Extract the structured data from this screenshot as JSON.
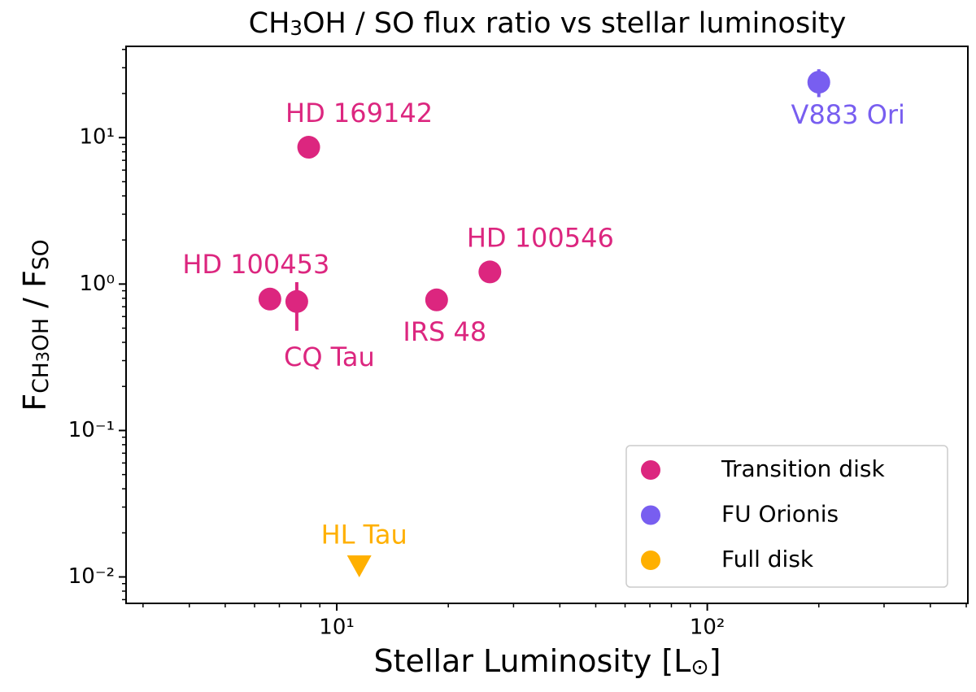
{
  "chart_data": {
    "type": "scatter",
    "title_parts": [
      {
        "text": "CH"
      },
      {
        "text": "3",
        "sub": true
      },
      {
        "text": "OH / SO flux ratio vs stellar luminosity"
      }
    ],
    "xlabel_parts": [
      {
        "text": "Stellar Luminosity [L"
      },
      {
        "text": "⊙",
        "sub": true
      },
      {
        "text": "]"
      }
    ],
    "ylabel_parts": [
      {
        "text": "F"
      },
      {
        "text": "CH"
      },
      {
        "text": "3",
        "sub2": true
      },
      {
        "text": "OH"
      },
      {
        "text": " / F"
      },
      {
        "text": "SO"
      }
    ],
    "xscale": "log",
    "yscale": "log",
    "xlim": [
      2.7,
      505
    ],
    "ylim": [
      0.0066,
      42
    ],
    "xticks": [
      {
        "value": 10,
        "label": "10¹"
      },
      {
        "value": 100,
        "label": "10²"
      }
    ],
    "yticks": [
      {
        "value": 0.01,
        "label": "10⁻²"
      },
      {
        "value": 0.1,
        "label": "10⁻¹"
      },
      {
        "value": 1,
        "label": "10⁰"
      },
      {
        "value": 10,
        "label": "10¹"
      }
    ],
    "xminorticks": [
      3,
      4,
      5,
      6,
      7,
      8,
      9,
      20,
      30,
      40,
      50,
      60,
      70,
      80,
      90,
      200,
      300,
      400,
      500
    ],
    "yminorticks": [
      0.007,
      0.008,
      0.009,
      0.02,
      0.03,
      0.04,
      0.05,
      0.06,
      0.07,
      0.08,
      0.09,
      0.2,
      0.3,
      0.4,
      0.5,
      0.6,
      0.7,
      0.8,
      0.9,
      2,
      3,
      4,
      5,
      6,
      7,
      8,
      9,
      20,
      30,
      40
    ],
    "legend": "lower right",
    "series": [
      {
        "name": "Transition disk",
        "color": "#dc267f",
        "marker": "circle",
        "x": [
          8.4,
          6.6,
          7.8,
          18.6,
          25.9
        ],
        "y": [
          8.6,
          0.79,
          0.76,
          0.78,
          1.21
        ],
        "yerr_minus": [
          null,
          null,
          0.28,
          null,
          null
        ],
        "yerr_plus": [
          null,
          null,
          0.27,
          null,
          null
        ],
        "labels": [
          "HD 169142",
          "HD 100453",
          "CQ Tau",
          "IRS 48",
          "HD 100546"
        ]
      },
      {
        "name": "FU Orionis",
        "color": "#785ef0",
        "marker": "circle",
        "x": [
          200
        ],
        "y": [
          23.9
        ],
        "yerr_minus": [
          5
        ],
        "yerr_plus": [
          5.4
        ],
        "labels": [
          "V883 Ori"
        ]
      },
      {
        "name": "Full disk",
        "color": "#ffb000",
        "marker": "triangle-down",
        "x": [
          11.5
        ],
        "y": [
          0.0118
        ],
        "yerr_minus": [
          null
        ],
        "yerr_plus": [
          null
        ],
        "labels": [
          "HL Tau"
        ]
      }
    ]
  }
}
